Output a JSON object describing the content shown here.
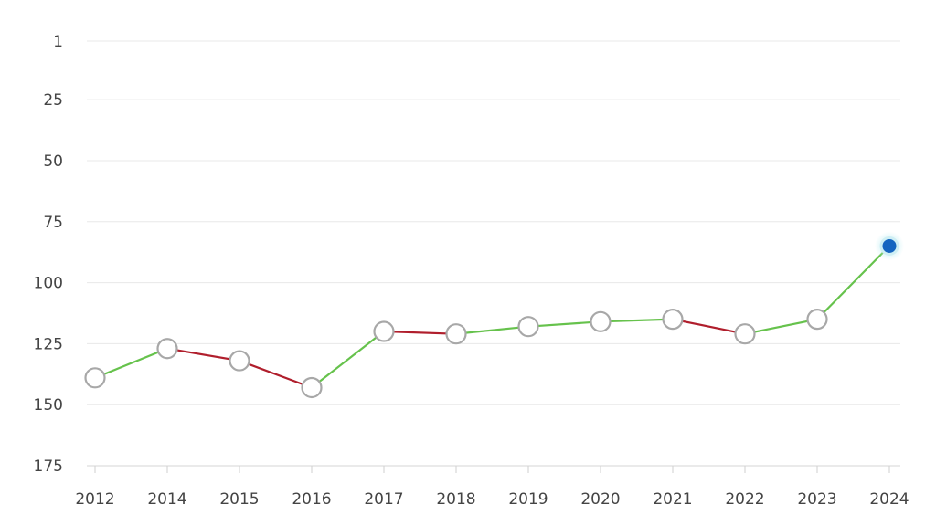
{
  "chart_data": {
    "type": "line",
    "title": "",
    "xlabel": "",
    "ylabel": "",
    "categories": [
      "2012",
      "2014",
      "2015",
      "2016",
      "2017",
      "2018",
      "2019",
      "2020",
      "2021",
      "2022",
      "2023",
      "2024"
    ],
    "values": [
      139,
      127,
      132,
      143,
      120,
      121,
      118,
      116,
      115,
      121,
      115,
      85
    ],
    "ylim": [
      1,
      175
    ],
    "y_ticks": [
      1,
      25,
      50,
      75,
      100,
      125,
      150,
      175
    ],
    "y_inverted": true,
    "grid": true,
    "colors": {
      "improving": "#66c24c",
      "declining": "#b01e2c",
      "marker_fill": "#ffffff",
      "marker_stroke": "#a8a8a8",
      "current_marker": "#1565c0",
      "gridline": "#e8e8e8",
      "tick_label": "#444444"
    }
  }
}
